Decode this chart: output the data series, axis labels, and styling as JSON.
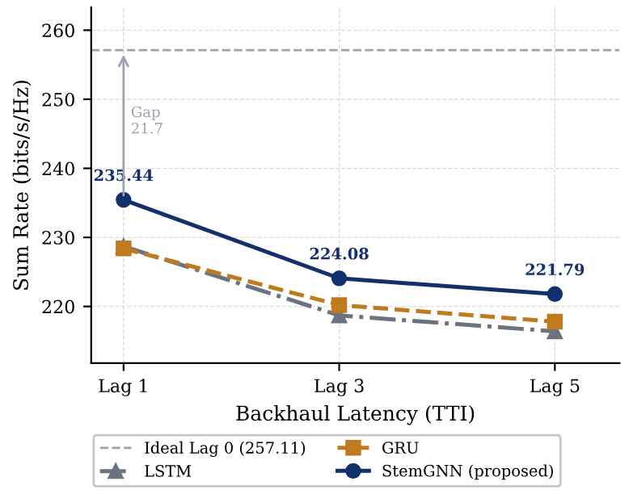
{
  "chart_data": {
    "type": "line",
    "xlabel": "Backhaul Latency (TTI)",
    "ylabel": "Sum Rate (bits/s/Hz)",
    "categories": [
      "Lag 1",
      "Lag 3",
      "Lag 5"
    ],
    "series": [
      {
        "name": "LSTM",
        "color": "#6b7280",
        "values": [
          228.7,
          218.7,
          216.4
        ],
        "marker": "triangle",
        "line_style": "dashdot"
      },
      {
        "name": "GRU",
        "color": "#c07a1e",
        "values": [
          228.4,
          220.2,
          217.8
        ],
        "marker": "square",
        "line_style": "dashed"
      },
      {
        "name": "StemGNN (proposed)",
        "color": "#12306b",
        "values": [
          235.44,
          224.08,
          221.79
        ],
        "marker": "circle",
        "line_style": "solid",
        "value_labels": [
          "235.44",
          "224.08",
          "221.79"
        ]
      }
    ],
    "ref_lines": [
      {
        "axis": "y",
        "value": 257.11,
        "label": "Ideal Lag 0 (257.11)",
        "color": "#9ca3af",
        "line_style": "dashed"
      }
    ],
    "annotations": [
      "Gap\n21.7"
    ],
    "ylim": [
      211.8,
      263.3
    ],
    "yticks": [
      220,
      230,
      240,
      250,
      260
    ],
    "grid": true,
    "legend": "bottom"
  }
}
